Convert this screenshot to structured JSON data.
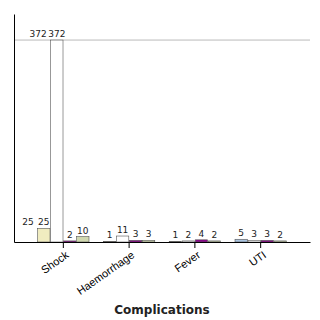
{
  "chart_data": {
    "type": "bar",
    "xlabel": "Complications",
    "categories": [
      "Shock",
      "Haemorrhage",
      "Fever",
      "UTI"
    ],
    "series": [
      {
        "values": [
          25,
          1,
          1,
          5
        ],
        "color": "#f0ecc0",
        "colors": [
          "#f0ecc0",
          "#f0ecc0",
          "#f0ecc0",
          "#aac4e0"
        ]
      },
      {
        "values": [
          372,
          11,
          2,
          3
        ],
        "color": "#ffffff"
      },
      {
        "values": [
          2,
          3,
          4,
          3
        ],
        "color": "#8b008b"
      },
      {
        "values": [
          10,
          3,
          2,
          2
        ],
        "color": "#d0d8b0"
      }
    ],
    "hline": 372,
    "annotations": [
      {
        "text": "372",
        "y": 372
      },
      {
        "text": "25",
        "y": 25
      }
    ],
    "ylim": [
      0,
      420
    ],
    "data_labels": true,
    "tick_labels": "x"
  }
}
